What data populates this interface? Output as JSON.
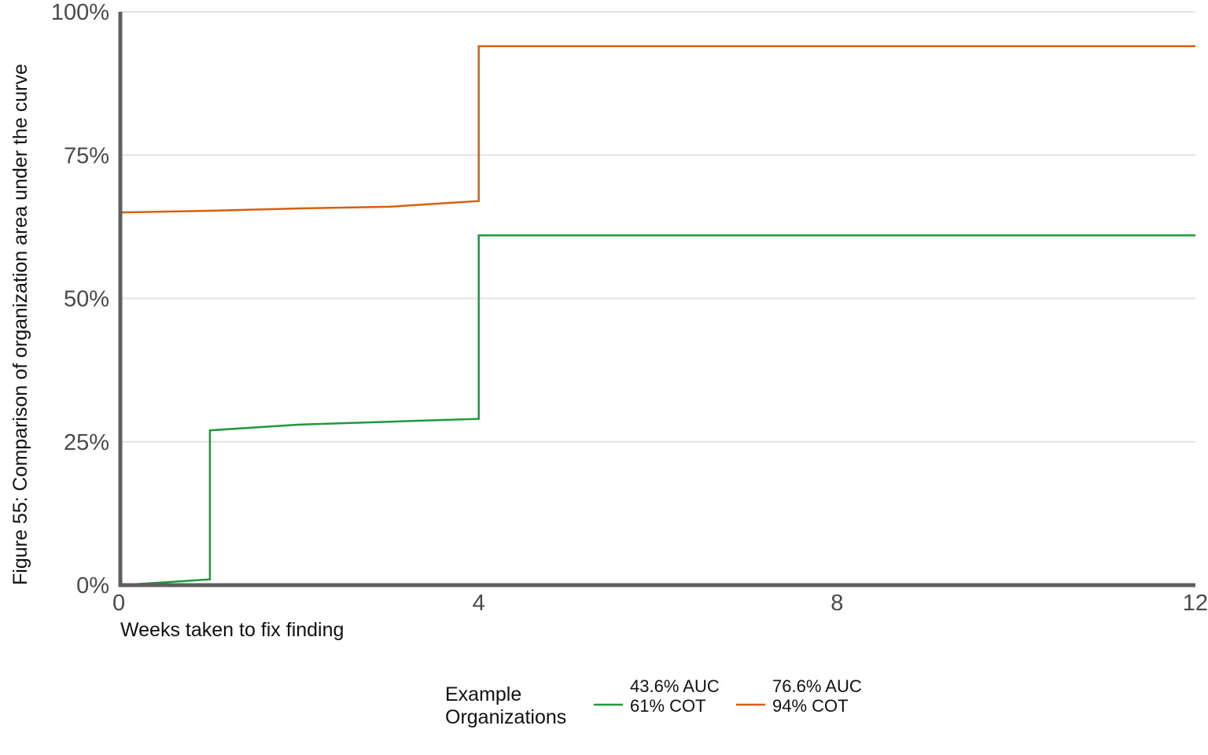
{
  "chart_data": {
    "type": "line",
    "step": true,
    "ylabel": "Figure 55: Comparison of organization area under the curve",
    "xlabel": "Weeks taken to fix finding",
    "xlim": [
      0,
      12
    ],
    "ylim": [
      0,
      100
    ],
    "x_ticks": [
      0,
      4,
      8,
      12
    ],
    "x_tick_labels": [
      "0",
      "4",
      "8",
      "12"
    ],
    "y_ticks": [
      0,
      25,
      50,
      75,
      100
    ],
    "y_tick_labels": [
      "0%",
      "25%",
      "50%",
      "75%",
      "100%"
    ],
    "grid": "horizontal",
    "legend": {
      "title_lines": [
        "Example",
        "Organizations"
      ],
      "placement": "bottom"
    },
    "series": [
      {
        "name": "43.6% AUC / 61% COT",
        "label_lines": [
          "43.6% AUC",
          "61% COT"
        ],
        "color": "#1e9a3a",
        "points": [
          [
            0,
            0
          ],
          [
            1,
            1
          ],
          [
            1,
            27
          ],
          [
            2,
            28
          ],
          [
            3,
            28.5
          ],
          [
            4,
            29
          ],
          [
            4,
            61
          ],
          [
            12,
            61
          ]
        ]
      },
      {
        "name": "76.6% AUC / 94% COT",
        "label_lines": [
          "76.6% AUC",
          "94% COT"
        ],
        "color": "#d95f0e",
        "points": [
          [
            0,
            65
          ],
          [
            1,
            65.3
          ],
          [
            2,
            65.7
          ],
          [
            3,
            66
          ],
          [
            4,
            67
          ],
          [
            4,
            94
          ],
          [
            12,
            94
          ]
        ]
      }
    ]
  }
}
